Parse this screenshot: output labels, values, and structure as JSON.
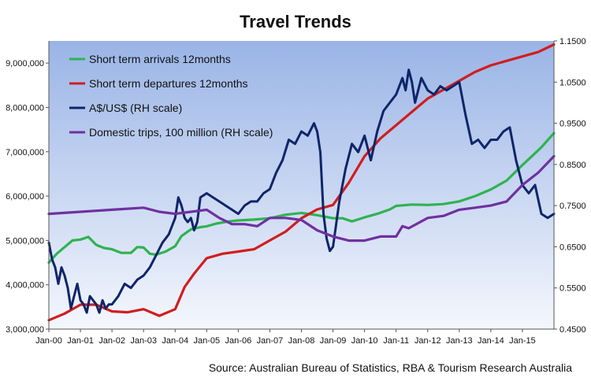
{
  "chart_data": {
    "type": "line",
    "title": "Travel Trends",
    "source": "Source: Australian Bureau of Statistics, RBA & Tourism Research Australia",
    "x_ticks": [
      "Jan-00",
      "Jan-01",
      "Jan-02",
      "Jan-03",
      "Jan-04",
      "Jan-05",
      "Jan-06",
      "Jan-07",
      "Jan-08",
      "Jan-09",
      "Jan-10",
      "Jan-11",
      "Jan-12",
      "Jan-13",
      "Jan-14",
      "Jan-15"
    ],
    "x_domain": [
      2000.0,
      2016.0
    ],
    "y_left": {
      "range": [
        3000000,
        9500000
      ],
      "ticks": [
        3000000,
        4000000,
        5000000,
        6000000,
        7000000,
        8000000,
        9000000
      ],
      "tick_labels": [
        "3,000,000",
        "4,000,000",
        "5,000,000",
        "6,000,000",
        "7,000,000",
        "8,000,000",
        "9,000,000"
      ]
    },
    "y_right": {
      "range": [
        0.45,
        1.15
      ],
      "ticks": [
        0.45,
        0.55,
        0.65,
        0.75,
        0.85,
        0.95,
        1.05,
        1.15
      ],
      "tick_labels": [
        "0.4500",
        "0.5500",
        "0.6500",
        "0.7500",
        "0.8500",
        "0.9500",
        "1.0500",
        "1.1500"
      ]
    },
    "grid": false,
    "legend_position": "top-left",
    "series": [
      {
        "name": "Short term arrivals 12months",
        "axis": "left",
        "color": "#2fb351",
        "x": [
          2000.0,
          2000.25,
          2000.5,
          2000.75,
          2001.0,
          2001.25,
          2001.5,
          2001.75,
          2002.0,
          2002.3,
          2002.6,
          2002.8,
          2003.0,
          2003.2,
          2003.4,
          2003.7,
          2004.0,
          2004.2,
          2004.5,
          2004.8,
          2005.0,
          2005.3,
          2005.7,
          2006.0,
          2006.5,
          2007.0,
          2007.5,
          2008.0,
          2008.5,
          2009.0,
          2009.3,
          2009.6,
          2010.0,
          2010.4,
          2010.8,
          2011.0,
          2011.5,
          2012.0,
          2012.5,
          2013.0,
          2013.5,
          2014.0,
          2014.5,
          2015.0,
          2015.3,
          2015.6,
          2016.0
        ],
        "y": [
          4500000,
          4700000,
          4850000,
          5000000,
          5020000,
          5080000,
          4900000,
          4830000,
          4800000,
          4720000,
          4720000,
          4850000,
          4840000,
          4700000,
          4680000,
          4750000,
          4870000,
          5100000,
          5250000,
          5300000,
          5320000,
          5380000,
          5430000,
          5450000,
          5470000,
          5500000,
          5580000,
          5620000,
          5570000,
          5500000,
          5500000,
          5430000,
          5520000,
          5600000,
          5700000,
          5780000,
          5810000,
          5800000,
          5820000,
          5880000,
          6000000,
          6150000,
          6350000,
          6700000,
          6900000,
          7100000,
          7420000
        ]
      },
      {
        "name": "Short term departures 12months",
        "axis": "left",
        "color": "#d01e1e",
        "x": [
          2000.0,
          2000.5,
          2001.0,
          2001.5,
          2002.0,
          2002.5,
          2003.0,
          2003.5,
          2004.0,
          2004.3,
          2004.6,
          2005.0,
          2005.5,
          2006.0,
          2006.5,
          2007.0,
          2007.5,
          2008.0,
          2008.5,
          2009.0,
          2009.5,
          2010.0,
          2010.5,
          2011.0,
          2011.5,
          2012.0,
          2012.5,
          2013.0,
          2013.5,
          2014.0,
          2014.5,
          2015.0,
          2015.5,
          2016.0
        ],
        "y": [
          3200000,
          3350000,
          3550000,
          3550000,
          3400000,
          3380000,
          3450000,
          3300000,
          3450000,
          3950000,
          4250000,
          4600000,
          4700000,
          4750000,
          4800000,
          5000000,
          5200000,
          5500000,
          5700000,
          5800000,
          6300000,
          6900000,
          7300000,
          7600000,
          7900000,
          8200000,
          8400000,
          8600000,
          8800000,
          8950000,
          9050000,
          9150000,
          9250000,
          9420000
        ]
      },
      {
        "name": "A$/US$ (RH scale)",
        "axis": "right",
        "color": "#0f2569",
        "x": [
          2000.0,
          2000.1,
          2000.2,
          2000.3,
          2000.4,
          2000.5,
          2000.6,
          2000.7,
          2000.8,
          2000.9,
          2001.0,
          2001.1,
          2001.2,
          2001.3,
          2001.4,
          2001.5,
          2001.6,
          2001.7,
          2001.8,
          2001.9,
          2002.0,
          2002.2,
          2002.4,
          2002.6,
          2002.8,
          2003.0,
          2003.2,
          2003.4,
          2003.6,
          2003.8,
          2004.0,
          2004.1,
          2004.2,
          2004.3,
          2004.4,
          2004.5,
          2004.6,
          2004.7,
          2004.8,
          2005.0,
          2005.2,
          2005.4,
          2005.6,
          2005.8,
          2006.0,
          2006.2,
          2006.4,
          2006.6,
          2006.8,
          2007.0,
          2007.2,
          2007.4,
          2007.6,
          2007.8,
          2008.0,
          2008.2,
          2008.4,
          2008.5,
          2008.6,
          2008.7,
          2008.8,
          2008.9,
          2009.0,
          2009.2,
          2009.4,
          2009.6,
          2009.8,
          2010.0,
          2010.2,
          2010.4,
          2010.6,
          2010.8,
          2011.0,
          2011.2,
          2011.3,
          2011.4,
          2011.5,
          2011.6,
          2011.8,
          2012.0,
          2012.2,
          2012.4,
          2012.6,
          2012.8,
          2013.0,
          2013.2,
          2013.4,
          2013.6,
          2013.8,
          2014.0,
          2014.2,
          2014.4,
          2014.6,
          2014.8,
          2015.0,
          2015.2,
          2015.4,
          2015.6,
          2015.8,
          2016.0
        ],
        "y": [
          0.66,
          0.62,
          0.6,
          0.56,
          0.6,
          0.58,
          0.55,
          0.5,
          0.53,
          0.56,
          0.52,
          0.51,
          0.49,
          0.53,
          0.52,
          0.51,
          0.49,
          0.52,
          0.5,
          0.51,
          0.51,
          0.53,
          0.56,
          0.55,
          0.57,
          0.58,
          0.6,
          0.63,
          0.66,
          0.68,
          0.72,
          0.77,
          0.75,
          0.72,
          0.71,
          0.72,
          0.69,
          0.71,
          0.77,
          0.78,
          0.77,
          0.76,
          0.75,
          0.74,
          0.73,
          0.75,
          0.76,
          0.76,
          0.78,
          0.79,
          0.83,
          0.86,
          0.91,
          0.9,
          0.93,
          0.92,
          0.95,
          0.93,
          0.88,
          0.73,
          0.67,
          0.64,
          0.65,
          0.76,
          0.84,
          0.9,
          0.88,
          0.92,
          0.86,
          0.93,
          0.98,
          1.0,
          1.02,
          1.06,
          1.03,
          1.08,
          1.05,
          1.0,
          1.06,
          1.03,
          1.02,
          1.04,
          1.03,
          1.04,
          1.05,
          0.97,
          0.9,
          0.91,
          0.89,
          0.91,
          0.91,
          0.93,
          0.94,
          0.86,
          0.8,
          0.78,
          0.8,
          0.73,
          0.72,
          0.73
        ]
      },
      {
        "name": "Domestic trips, 100 million (RH scale)",
        "axis": "right",
        "color": "#7030a0",
        "x": [
          2000.0,
          2001.0,
          2002.0,
          2003.0,
          2003.5,
          2004.0,
          2004.5,
          2005.0,
          2005.4,
          2005.8,
          2006.2,
          2006.6,
          2007.0,
          2007.5,
          2008.0,
          2008.5,
          2009.0,
          2009.5,
          2010.0,
          2010.5,
          2011.0,
          2011.2,
          2011.4,
          2012.0,
          2012.5,
          2013.0,
          2013.5,
          2014.0,
          2014.5,
          2015.0,
          2015.5,
          2016.0
        ],
        "y": [
          0.73,
          0.735,
          0.74,
          0.745,
          0.735,
          0.73,
          0.735,
          0.74,
          0.72,
          0.705,
          0.705,
          0.7,
          0.72,
          0.72,
          0.715,
          0.69,
          0.675,
          0.665,
          0.665,
          0.675,
          0.675,
          0.7,
          0.695,
          0.72,
          0.725,
          0.74,
          0.745,
          0.75,
          0.76,
          0.8,
          0.83,
          0.87
        ]
      }
    ]
  }
}
